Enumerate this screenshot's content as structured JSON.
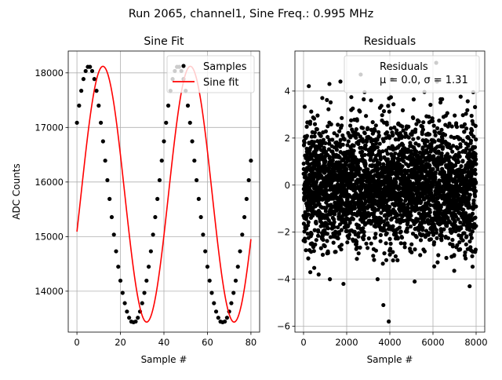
{
  "figure": {
    "suptitle": "Run 2065, channel1, Sine Freq.: 0.995 MHz"
  },
  "chart_data": [
    {
      "type": "line",
      "title": "Sine Fit",
      "xlabel": "Sample #",
      "ylabel": "ADC Counts",
      "xlim": [
        -4,
        84
      ],
      "ylim": [
        13250,
        18400
      ],
      "xticks": [
        0,
        20,
        40,
        60,
        80
      ],
      "xtick_labels": [
        "0",
        "20",
        "40",
        "60",
        "80"
      ],
      "yticks": [
        14000,
        15000,
        16000,
        17000,
        18000
      ],
      "ytick_labels": [
        "14000",
        "15000",
        "16000",
        "17000",
        "18000"
      ],
      "grid": true,
      "legend": {
        "position": "upper right",
        "entries": [
          "Samples",
          "Sine fit"
        ]
      },
      "fit": {
        "mean": 15777,
        "amplitude": 2343,
        "period": 40.2,
        "phase": -0.297,
        "n_samples": 81
      },
      "series": [
        {
          "name": "Samples",
          "kind": "scatter",
          "color": "#000000",
          "x": [
            0,
            1,
            2,
            3,
            4,
            5,
            6,
            7,
            8,
            9,
            10,
            11,
            12,
            13,
            14,
            15,
            16,
            17,
            18,
            19,
            20,
            21,
            22,
            23,
            24,
            25,
            26,
            27,
            28,
            29,
            30,
            31,
            32,
            33,
            34,
            35,
            36,
            37,
            38,
            39,
            40,
            41,
            42,
            43,
            44,
            45,
            46,
            47,
            48,
            49,
            50,
            51,
            52,
            53,
            54,
            55,
            56,
            57,
            58,
            59,
            60,
            61,
            62,
            63,
            64,
            65,
            66,
            67,
            68,
            69,
            70,
            71,
            72,
            73,
            74,
            75,
            76,
            77,
            78,
            79,
            80
          ],
          "y": [
            17086,
            17400,
            17672,
            17887,
            18034,
            18110,
            18110,
            18034,
            17887,
            17672,
            17400,
            17086,
            16746,
            16392,
            16034,
            15690,
            15357,
            15036,
            14731,
            14448,
            14193,
            13969,
            13780,
            13627,
            13513,
            13442,
            13431,
            13443,
            13513,
            13627,
            13780,
            13969,
            14193,
            14448,
            14731,
            15036,
            15357,
            15690,
            16034,
            16392,
            16746,
            17086,
            17400,
            17672,
            17887,
            18034,
            18110,
            18110,
            18034,
            17887,
            17672,
            17400,
            17086,
            16746,
            16392,
            16034,
            15690,
            15357,
            15036,
            14731,
            14448,
            14193,
            13969,
            13780,
            13627,
            13513,
            13442,
            13431,
            13443,
            13513,
            13627,
            13780,
            13969,
            14193,
            14448,
            14731,
            15036,
            15357,
            15690,
            16034,
            16392
          ]
        },
        {
          "name": "Sine fit",
          "kind": "line",
          "color": "#ff0000"
        }
      ]
    },
    {
      "type": "scatter",
      "title": "Residuals",
      "xlabel": "Sample #",
      "ylabel": "",
      "xlim": [
        -400,
        8400
      ],
      "ylim": [
        -6.25,
        5.7
      ],
      "xticks": [
        0,
        2000,
        4000,
        6000,
        8000
      ],
      "xtick_labels": [
        "0",
        "2000",
        "4000",
        "6000",
        "8000"
      ],
      "yticks": [
        -6,
        -4,
        -2,
        0,
        2,
        4
      ],
      "ytick_labels": [
        "−6",
        "−4",
        "−2",
        "0",
        "2",
        "4"
      ],
      "grid": true,
      "legend": {
        "position": "upper right",
        "entries": [
          "Residuals",
          "μ = 0.0, σ = 1.31"
        ]
      },
      "series": [
        {
          "name": "Residuals",
          "color": "#000000",
          "n_points": 8000,
          "mu": 0.0,
          "sigma": 1.31,
          "outliers": [
            {
              "x": 3700,
              "y": -5.1
            },
            {
              "x": 3950,
              "y": -5.8
            },
            {
              "x": 6150,
              "y": 5.2
            },
            {
              "x": 2650,
              "y": 4.7
            },
            {
              "x": 700,
              "y": -3.8
            },
            {
              "x": 7700,
              "y": -4.3
            },
            {
              "x": 1850,
              "y": -4.2
            },
            {
              "x": 5150,
              "y": -4.1
            },
            {
              "x": 4100,
              "y": 4.5
            },
            {
              "x": 1200,
              "y": 4.3
            }
          ]
        }
      ]
    }
  ]
}
